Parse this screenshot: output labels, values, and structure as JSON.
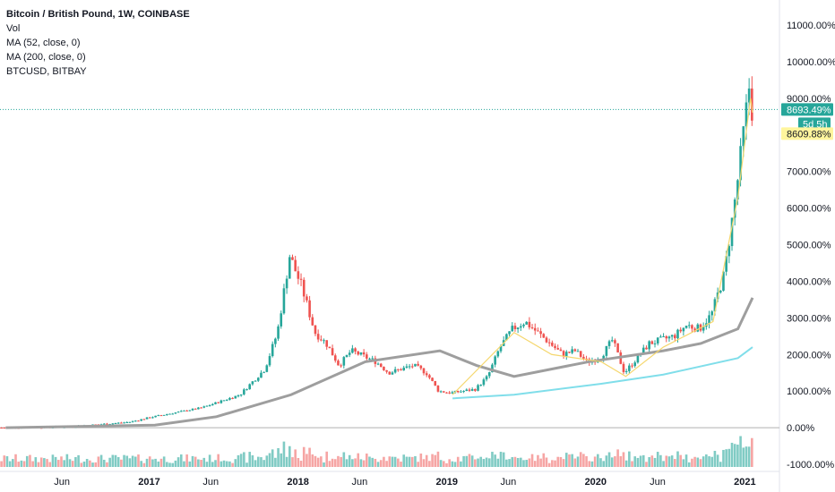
{
  "legend": {
    "title": "Bitcoin / British Pound, 1W, COINBASE",
    "vol": "Vol",
    "ma52": "MA (52, close, 0)",
    "ma200": "MA (200, close, 0)",
    "compare": "BTCUSD, BITBAY"
  },
  "colors": {
    "up": "#26a69a",
    "down": "#ef5350",
    "volUp": "#80cbc4",
    "volDown": "#f6a5a4",
    "ma52": "#9e9e9e",
    "ma200": "#80deea",
    "compare": "#f5d76e",
    "lastPrice": "#26a69a",
    "compareLabel": "#fff59d",
    "zeroLine": "#b0b0b0"
  },
  "price_labels": {
    "last": "8693.49%",
    "countdown": "5d 5h",
    "compare_last": "8609.88%"
  },
  "chart_data": {
    "type": "candlestick",
    "y_unit": "percent change",
    "ylim": [
      -1000,
      11000
    ],
    "y_ticks": [
      "11000.00%",
      "10000.00%",
      "9000.00%",
      "8000.00%",
      "7000.00%",
      "6000.00%",
      "5000.00%",
      "4000.00%",
      "3000.00%",
      "2000.00%",
      "1000.00%",
      "0.00%",
      "-1000.00%"
    ],
    "y_tick_values": [
      11000,
      10000,
      9000,
      8000,
      7000,
      6000,
      5000,
      4000,
      3000,
      2000,
      1000,
      0,
      -1000
    ],
    "x_ticks": [
      {
        "label": "Jun",
        "date": "2016-06",
        "bold": false
      },
      {
        "label": "2017",
        "date": "2017-01",
        "bold": true
      },
      {
        "label": "Jun",
        "date": "2017-06",
        "bold": false
      },
      {
        "label": "2018",
        "date": "2018-01",
        "bold": true
      },
      {
        "label": "Jun",
        "date": "2018-06",
        "bold": false
      },
      {
        "label": "2019",
        "date": "2019-01",
        "bold": true
      },
      {
        "label": "Jun",
        "date": "2019-06",
        "bold": false
      },
      {
        "label": "2020",
        "date": "2020-01",
        "bold": true
      },
      {
        "label": "Jun",
        "date": "2020-06",
        "bold": false
      },
      {
        "label": "2021",
        "date": "2021-01",
        "bold": true
      }
    ],
    "price_path": [
      [
        "2016-01",
        0
      ],
      [
        "2016-06",
        20
      ],
      [
        "2016-11",
        150
      ],
      [
        "2017-01",
        300
      ],
      [
        "2017-05",
        550
      ],
      [
        "2017-08",
        900
      ],
      [
        "2017-10",
        1600
      ],
      [
        "2017-11",
        2600
      ],
      [
        "2017-12",
        4700
      ],
      [
        "2018-01",
        3800
      ],
      [
        "2018-02",
        2600
      ],
      [
        "2018-03",
        2300
      ],
      [
        "2018-04",
        1700
      ],
      [
        "2018-05",
        2100
      ],
      [
        "2018-07",
        1800
      ],
      [
        "2018-08",
        1500
      ],
      [
        "2018-10",
        1700
      ],
      [
        "2018-11",
        1500
      ],
      [
        "2018-12",
        1000
      ],
      [
        "2019-01",
        950
      ],
      [
        "2019-03",
        1050
      ],
      [
        "2019-04",
        1400
      ],
      [
        "2019-05",
        2200
      ],
      [
        "2019-06",
        2700
      ],
      [
        "2019-07",
        2900
      ],
      [
        "2019-08",
        2600
      ],
      [
        "2019-09",
        2300
      ],
      [
        "2019-10",
        2000
      ],
      [
        "2019-11",
        2100
      ],
      [
        "2019-12",
        1800
      ],
      [
        "2020-01",
        1900
      ],
      [
        "2020-02",
        2400
      ],
      [
        "2020-03",
        1500
      ],
      [
        "2020-04",
        1900
      ],
      [
        "2020-05",
        2300
      ],
      [
        "2020-06",
        2400
      ],
      [
        "2020-07",
        2500
      ],
      [
        "2020-08",
        2800
      ],
      [
        "2020-09",
        2700
      ],
      [
        "2020-10",
        3100
      ],
      [
        "2020-11",
        4200
      ],
      [
        "2020-12",
        6500
      ],
      [
        "2021-01",
        9300
      ],
      [
        "2021-01-20",
        8693
      ]
    ],
    "ma52_path": [
      [
        "2016-01",
        0
      ],
      [
        "2017-01",
        70
      ],
      [
        "2017-06",
        300
      ],
      [
        "2017-12",
        900
      ],
      [
        "2018-06",
        1800
      ],
      [
        "2018-12",
        2100
      ],
      [
        "2019-03",
        1700
      ],
      [
        "2019-06",
        1400
      ],
      [
        "2019-12",
        1800
      ],
      [
        "2020-06",
        2100
      ],
      [
        "2020-09",
        2300
      ],
      [
        "2020-12",
        2700
      ],
      [
        "2021-01-20",
        3550
      ]
    ],
    "ma200_path": [
      [
        "2019-01",
        800
      ],
      [
        "2019-06",
        900
      ],
      [
        "2020-01",
        1200
      ],
      [
        "2020-06",
        1450
      ],
      [
        "2020-12",
        1900
      ],
      [
        "2021-01-20",
        2200
      ]
    ],
    "compare_path": [
      [
        "2019-01",
        900
      ],
      [
        "2019-06",
        2600
      ],
      [
        "2019-09",
        2000
      ],
      [
        "2020-01",
        1800
      ],
      [
        "2020-03",
        1400
      ],
      [
        "2020-06",
        2200
      ],
      [
        "2020-10",
        2900
      ],
      [
        "2020-12",
        6300
      ],
      [
        "2021-01",
        9000
      ],
      [
        "2021-01-20",
        8609
      ]
    ]
  }
}
